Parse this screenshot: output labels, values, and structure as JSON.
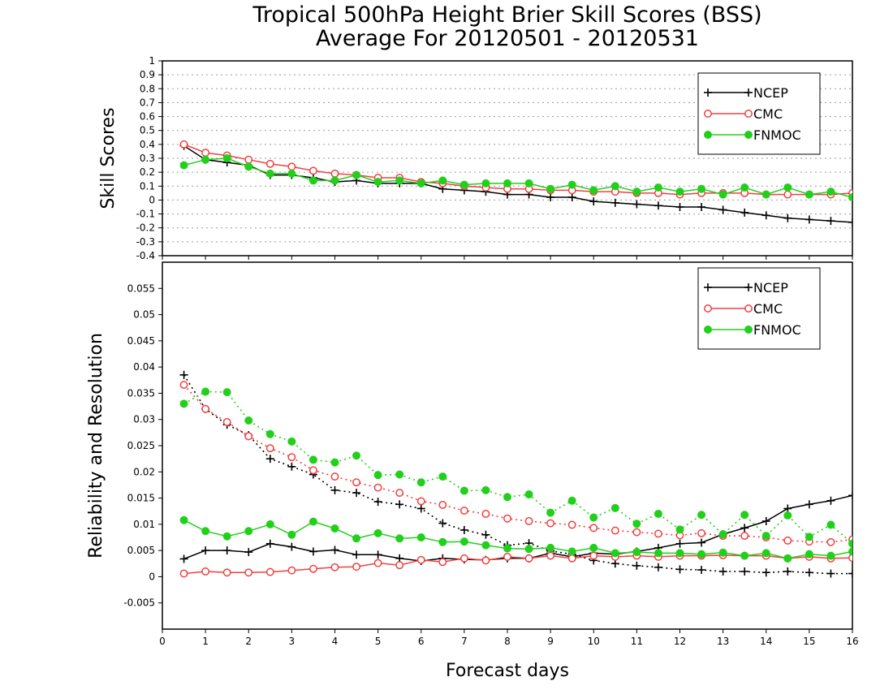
{
  "colors": {
    "NCEP": "#000000",
    "CMC": "#f04040",
    "FNMOC": "#22d01c"
  },
  "title": {
    "line1": "Tropical 500hPa Height Brier Skill Scores (BSS)",
    "line2": "Average For 20120501 - 20120531"
  },
  "xlabel": "Forecast days",
  "chart_data": [
    {
      "type": "line",
      "ylabel": "Skill Scores",
      "xlabel": "Forecast days",
      "xlim": [
        0,
        16
      ],
      "ylim": [
        -0.4,
        1
      ],
      "legend_position": "top-right",
      "grid": true,
      "x_ticks": [
        "0",
        "1",
        "2",
        "3",
        "4",
        "5",
        "6",
        "7",
        "8",
        "9",
        "10",
        "11",
        "12",
        "13",
        "14",
        "15",
        "16"
      ],
      "y_ticks": [
        "-0.4",
        "-0.3",
        "-0.2",
        "-0.1",
        "0",
        "0.1",
        "0.2",
        "0.3",
        "0.4",
        "0.5",
        "0.6",
        "0.7",
        "0.8",
        "0.9",
        "1"
      ],
      "x": [
        0.5,
        1,
        1.5,
        2,
        2.5,
        3,
        3.5,
        4,
        4.5,
        5,
        5.5,
        6,
        6.5,
        7,
        7.5,
        8,
        8.5,
        9,
        9.5,
        10,
        10.5,
        11,
        11.5,
        12,
        12.5,
        13,
        13.5,
        14,
        14.5,
        15,
        15.5,
        16
      ],
      "series": [
        {
          "name": "NCEP",
          "marker": "plus",
          "style": "solid",
          "values": [
            0.39,
            0.29,
            0.27,
            0.25,
            0.18,
            0.18,
            0.16,
            0.13,
            0.14,
            0.12,
            0.12,
            0.12,
            0.08,
            0.07,
            0.06,
            0.04,
            0.04,
            0.02,
            0.02,
            -0.01,
            -0.02,
            -0.03,
            -0.04,
            -0.05,
            -0.05,
            -0.07,
            -0.09,
            -0.11,
            -0.13,
            -0.14,
            -0.15,
            -0.16
          ]
        },
        {
          "name": "CMC",
          "marker": "circle-open",
          "style": "solid",
          "values": [
            0.4,
            0.34,
            0.32,
            0.29,
            0.26,
            0.24,
            0.21,
            0.19,
            0.18,
            0.16,
            0.16,
            0.13,
            0.12,
            0.1,
            0.09,
            0.08,
            0.08,
            0.07,
            0.07,
            0.06,
            0.06,
            0.05,
            0.05,
            0.04,
            0.05,
            0.05,
            0.05,
            0.04,
            0.04,
            0.04,
            0.04,
            0.05
          ]
        },
        {
          "name": "FNMOC",
          "marker": "circle-filled",
          "style": "solid",
          "values": [
            0.25,
            0.29,
            0.3,
            0.24,
            0.19,
            0.19,
            0.14,
            0.14,
            0.18,
            0.13,
            0.14,
            0.12,
            0.14,
            0.11,
            0.12,
            0.12,
            0.12,
            0.08,
            0.11,
            0.07,
            0.1,
            0.06,
            0.09,
            0.06,
            0.08,
            0.04,
            0.09,
            0.04,
            0.09,
            0.04,
            0.06,
            0.02
          ]
        }
      ]
    },
    {
      "type": "line",
      "ylabel": "Reliability and Resolution",
      "xlabel": "Forecast days",
      "xlim": [
        0,
        16
      ],
      "ylim": [
        -0.01,
        0.06
      ],
      "legend_position": "top-right",
      "grid": false,
      "x_ticks": [
        "0",
        "1",
        "2",
        "3",
        "4",
        "5",
        "6",
        "7",
        "8",
        "9",
        "10",
        "11",
        "12",
        "13",
        "14",
        "15",
        "16"
      ],
      "y_ticks": [
        "-0.005",
        "0",
        "0.005",
        "0.01",
        "0.015",
        "0.02",
        "0.025",
        "0.03",
        "0.035",
        "0.04",
        "0.045",
        "0.05",
        "0.055"
      ],
      "x": [
        0.5,
        1,
        1.5,
        2,
        2.5,
        3,
        3.5,
        4,
        4.5,
        5,
        5.5,
        6,
        6.5,
        7,
        7.5,
        8,
        8.5,
        9,
        9.5,
        10,
        10.5,
        11,
        11.5,
        12,
        12.5,
        13,
        13.5,
        14,
        14.5,
        15,
        15.5,
        16
      ],
      "series": [
        {
          "name": "NCEP",
          "marker": "plus",
          "style": "solid",
          "values": [
            0.0034,
            0.005,
            0.005,
            0.0047,
            0.0063,
            0.0057,
            0.0048,
            0.0051,
            0.0042,
            0.0042,
            0.0035,
            0.003,
            0.0035,
            0.0033,
            0.0032,
            0.0035,
            0.0035,
            0.0045,
            0.0038,
            0.0045,
            0.0043,
            0.0048,
            0.0055,
            0.0063,
            0.0065,
            0.0081,
            0.0093,
            0.0106,
            0.013,
            0.0138,
            0.0145,
            0.0155
          ]
        },
        {
          "name": "NCEP",
          "marker": "plus",
          "style": "dotted",
          "values": [
            0.0385,
            0.032,
            0.029,
            0.027,
            0.0225,
            0.021,
            0.0195,
            0.0165,
            0.016,
            0.0143,
            0.0138,
            0.013,
            0.0102,
            0.0089,
            0.008,
            0.006,
            0.0064,
            0.0049,
            0.0043,
            0.0031,
            0.0025,
            0.0021,
            0.0018,
            0.0014,
            0.0013,
            0.001,
            0.001,
            0.0008,
            0.001,
            0.0008,
            0.0006,
            0.0006
          ]
        },
        {
          "name": "CMC",
          "marker": "circle-open",
          "style": "solid",
          "values": [
            0.0006,
            0.001,
            0.0008,
            0.0008,
            0.0009,
            0.0012,
            0.0015,
            0.0018,
            0.0019,
            0.0026,
            0.0022,
            0.0032,
            0.0028,
            0.0035,
            0.0031,
            0.0038,
            0.0035,
            0.004,
            0.0035,
            0.004,
            0.0038,
            0.004,
            0.0038,
            0.004,
            0.004,
            0.0041,
            0.004,
            0.004,
            0.0035,
            0.0038,
            0.0035,
            0.0036
          ]
        },
        {
          "name": "CMC",
          "marker": "circle-open",
          "style": "dotted",
          "values": [
            0.0366,
            0.032,
            0.0295,
            0.0268,
            0.0245,
            0.0228,
            0.0203,
            0.0191,
            0.018,
            0.017,
            0.016,
            0.0144,
            0.0137,
            0.0126,
            0.012,
            0.0111,
            0.0106,
            0.0102,
            0.0099,
            0.0093,
            0.0088,
            0.0085,
            0.0082,
            0.0079,
            0.0083,
            0.0078,
            0.0078,
            0.0075,
            0.0069,
            0.0067,
            0.0066,
            0.0071
          ]
        },
        {
          "name": "FNMOC",
          "marker": "circle-filled",
          "style": "solid",
          "values": [
            0.0108,
            0.0087,
            0.0077,
            0.0087,
            0.01,
            0.008,
            0.0105,
            0.0092,
            0.0073,
            0.0083,
            0.0073,
            0.0075,
            0.0066,
            0.0067,
            0.006,
            0.0054,
            0.0053,
            0.0055,
            0.0048,
            0.0055,
            0.0045,
            0.0047,
            0.0045,
            0.0045,
            0.0043,
            0.0046,
            0.004,
            0.0045,
            0.0035,
            0.0043,
            0.004,
            0.0048
          ]
        },
        {
          "name": "FNMOC",
          "marker": "circle-filled",
          "style": "dotted",
          "values": [
            0.033,
            0.0353,
            0.0352,
            0.0298,
            0.0272,
            0.0258,
            0.0223,
            0.0218,
            0.0231,
            0.0194,
            0.0195,
            0.018,
            0.0191,
            0.0164,
            0.0165,
            0.0152,
            0.0157,
            0.0122,
            0.0145,
            0.0113,
            0.0131,
            0.0101,
            0.012,
            0.009,
            0.0118,
            0.0081,
            0.0118,
            0.0078,
            0.0117,
            0.0076,
            0.0099,
            0.0063
          ]
        }
      ]
    }
  ]
}
